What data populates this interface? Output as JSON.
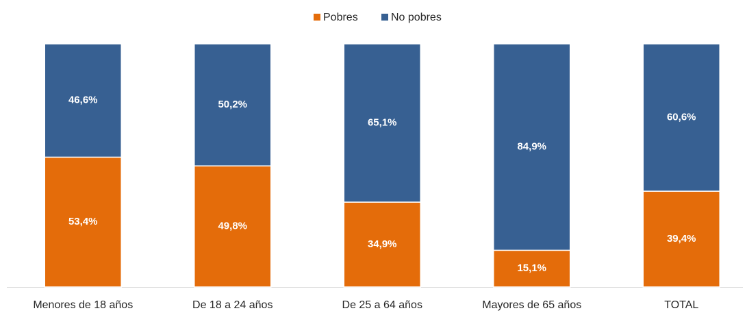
{
  "chart_data": {
    "type": "stacked_bar",
    "categories": [
      "Menores de 18 años",
      "De 18 a 24 años",
      "De 25 a 64 años",
      "Mayores de 65 años",
      "TOTAL"
    ],
    "series": [
      {
        "name": "Pobres",
        "color": "#e46c0a",
        "values": [
          53.4,
          49.8,
          34.9,
          15.1,
          39.4
        ],
        "value_labels": [
          "53,4%",
          "49,8%",
          "34,9%",
          "15,1%",
          "39,4%"
        ]
      },
      {
        "name": "No pobres",
        "color": "#376092",
        "values": [
          46.6,
          50.2,
          65.1,
          84.9,
          60.6
        ],
        "value_labels": [
          "46,6%",
          "50,2%",
          "65,1%",
          "84,9%",
          "60,6%"
        ]
      }
    ],
    "ylim": [
      0,
      100
    ],
    "legend": "top"
  }
}
